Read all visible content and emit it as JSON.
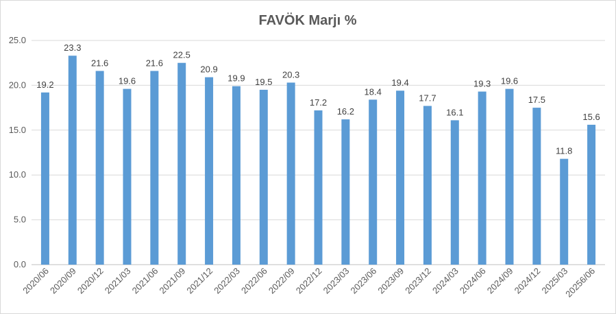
{
  "chart_data": {
    "type": "bar",
    "title": "FAVÖK Marjı %",
    "xlabel": "",
    "ylabel": "",
    "categories": [
      "2020/06",
      "2020/09",
      "2020/12",
      "2021/03",
      "2021/06",
      "2021/09",
      "2021/12",
      "2022/03",
      "2022/06",
      "2022/09",
      "2022/12",
      "2023/03",
      "2023/06",
      "2023/09",
      "2023/12",
      "2024/03",
      "2024/06",
      "2024/09",
      "2024/12",
      "2025/03",
      "20256/06"
    ],
    "values": [
      19.2,
      23.3,
      21.6,
      19.6,
      21.6,
      22.5,
      20.9,
      19.9,
      19.5,
      20.3,
      17.2,
      16.2,
      18.4,
      19.4,
      17.7,
      16.1,
      19.3,
      19.6,
      17.5,
      11.8,
      15.6
    ],
    "value_labels": [
      "19.2",
      "23.3",
      "21.6",
      "19.6",
      "21.6",
      "22.5",
      "20.9",
      "19.9",
      "19.5",
      "20.3",
      "17.2",
      "16.2",
      "18.4",
      "19.4",
      "17.7",
      "16.1",
      "19.3",
      "19.6",
      "17.5",
      "11.8",
      "15.6"
    ],
    "ylim": [
      0,
      25
    ],
    "yticks": [
      "0.0",
      "5.0",
      "10.0",
      "15.0",
      "20.0",
      "25.0"
    ],
    "grid": true,
    "legend": "none",
    "bar_color": "#5b9bd5"
  }
}
